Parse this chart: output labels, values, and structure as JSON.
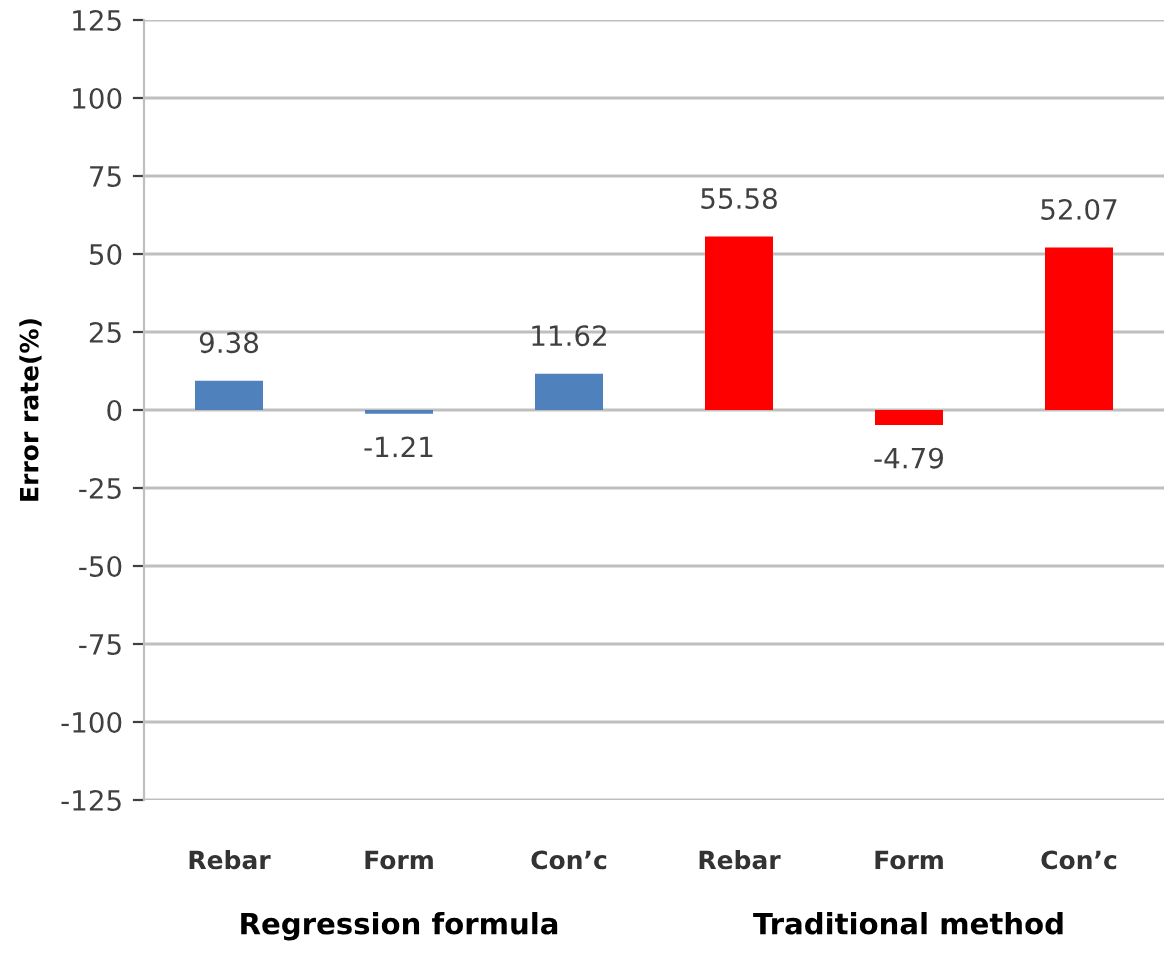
{
  "chart_data": {
    "type": "bar",
    "ylabel": "Error rate(%)",
    "categories": [
      "Rebar",
      "Form",
      "Con’c",
      "Rebar",
      "Form",
      "Con’c"
    ],
    "values": [
      9.38,
      -1.21,
      11.62,
      55.58,
      -4.79,
      52.07
    ],
    "colors": [
      "#4f81bd",
      "#4f81bd",
      "#4f81bd",
      "#ff0000",
      "#ff0000",
      "#ff0000"
    ],
    "ylim": [
      -125,
      125
    ],
    "yticks": [
      -125,
      -100,
      -75,
      -50,
      -25,
      0,
      25,
      50,
      75,
      100,
      125
    ],
    "grid": "y",
    "data_labels": true,
    "legend": false,
    "annotations": [
      "Regression formula",
      "Traditional method"
    ]
  }
}
